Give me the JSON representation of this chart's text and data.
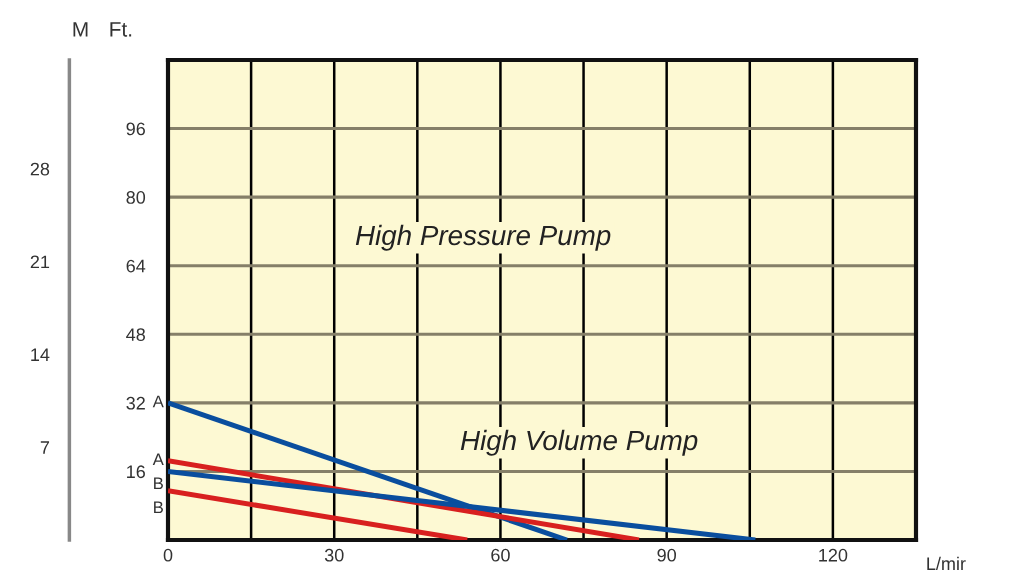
{
  "chart_data": {
    "type": "line",
    "xlabel": "L/mir",
    "ylabel": "Ft.",
    "y2label": "M",
    "annotations": [
      "High Pressure Pump",
      "High Volume Pump"
    ],
    "series": [
      {
        "name": "A",
        "color": "#0a4e9e",
        "x": [
          0,
          72
        ],
        "values": [
          32,
          0
        ]
      },
      {
        "name": "A",
        "color": "#d8201f",
        "x": [
          0,
          85
        ],
        "values": [
          18.5,
          0
        ]
      },
      {
        "name": "B",
        "color": "#0a4e9e",
        "x": [
          0,
          106
        ],
        "values": [
          16,
          0
        ]
      },
      {
        "name": "B",
        "color": "#d8201f",
        "x": [
          0,
          54
        ],
        "values": [
          11.5,
          0
        ]
      }
    ],
    "xlim": [
      0,
      135
    ],
    "ylim": [
      0,
      112
    ],
    "y2lim": [
      0,
      36.2
    ],
    "xticks": [
      0,
      {
        "value": 15,
        "label": null
      },
      30,
      {
        "value": 45,
        "label": null
      },
      60,
      {
        "value": 75,
        "label": null
      },
      90,
      {
        "value": 105,
        "label": null
      },
      120
    ],
    "yticks": [
      16,
      32,
      48,
      64,
      80,
      96
    ],
    "y2ticks": [
      7,
      14,
      21,
      28
    ],
    "grid": true,
    "marker": "none",
    "line_style": "solid"
  }
}
